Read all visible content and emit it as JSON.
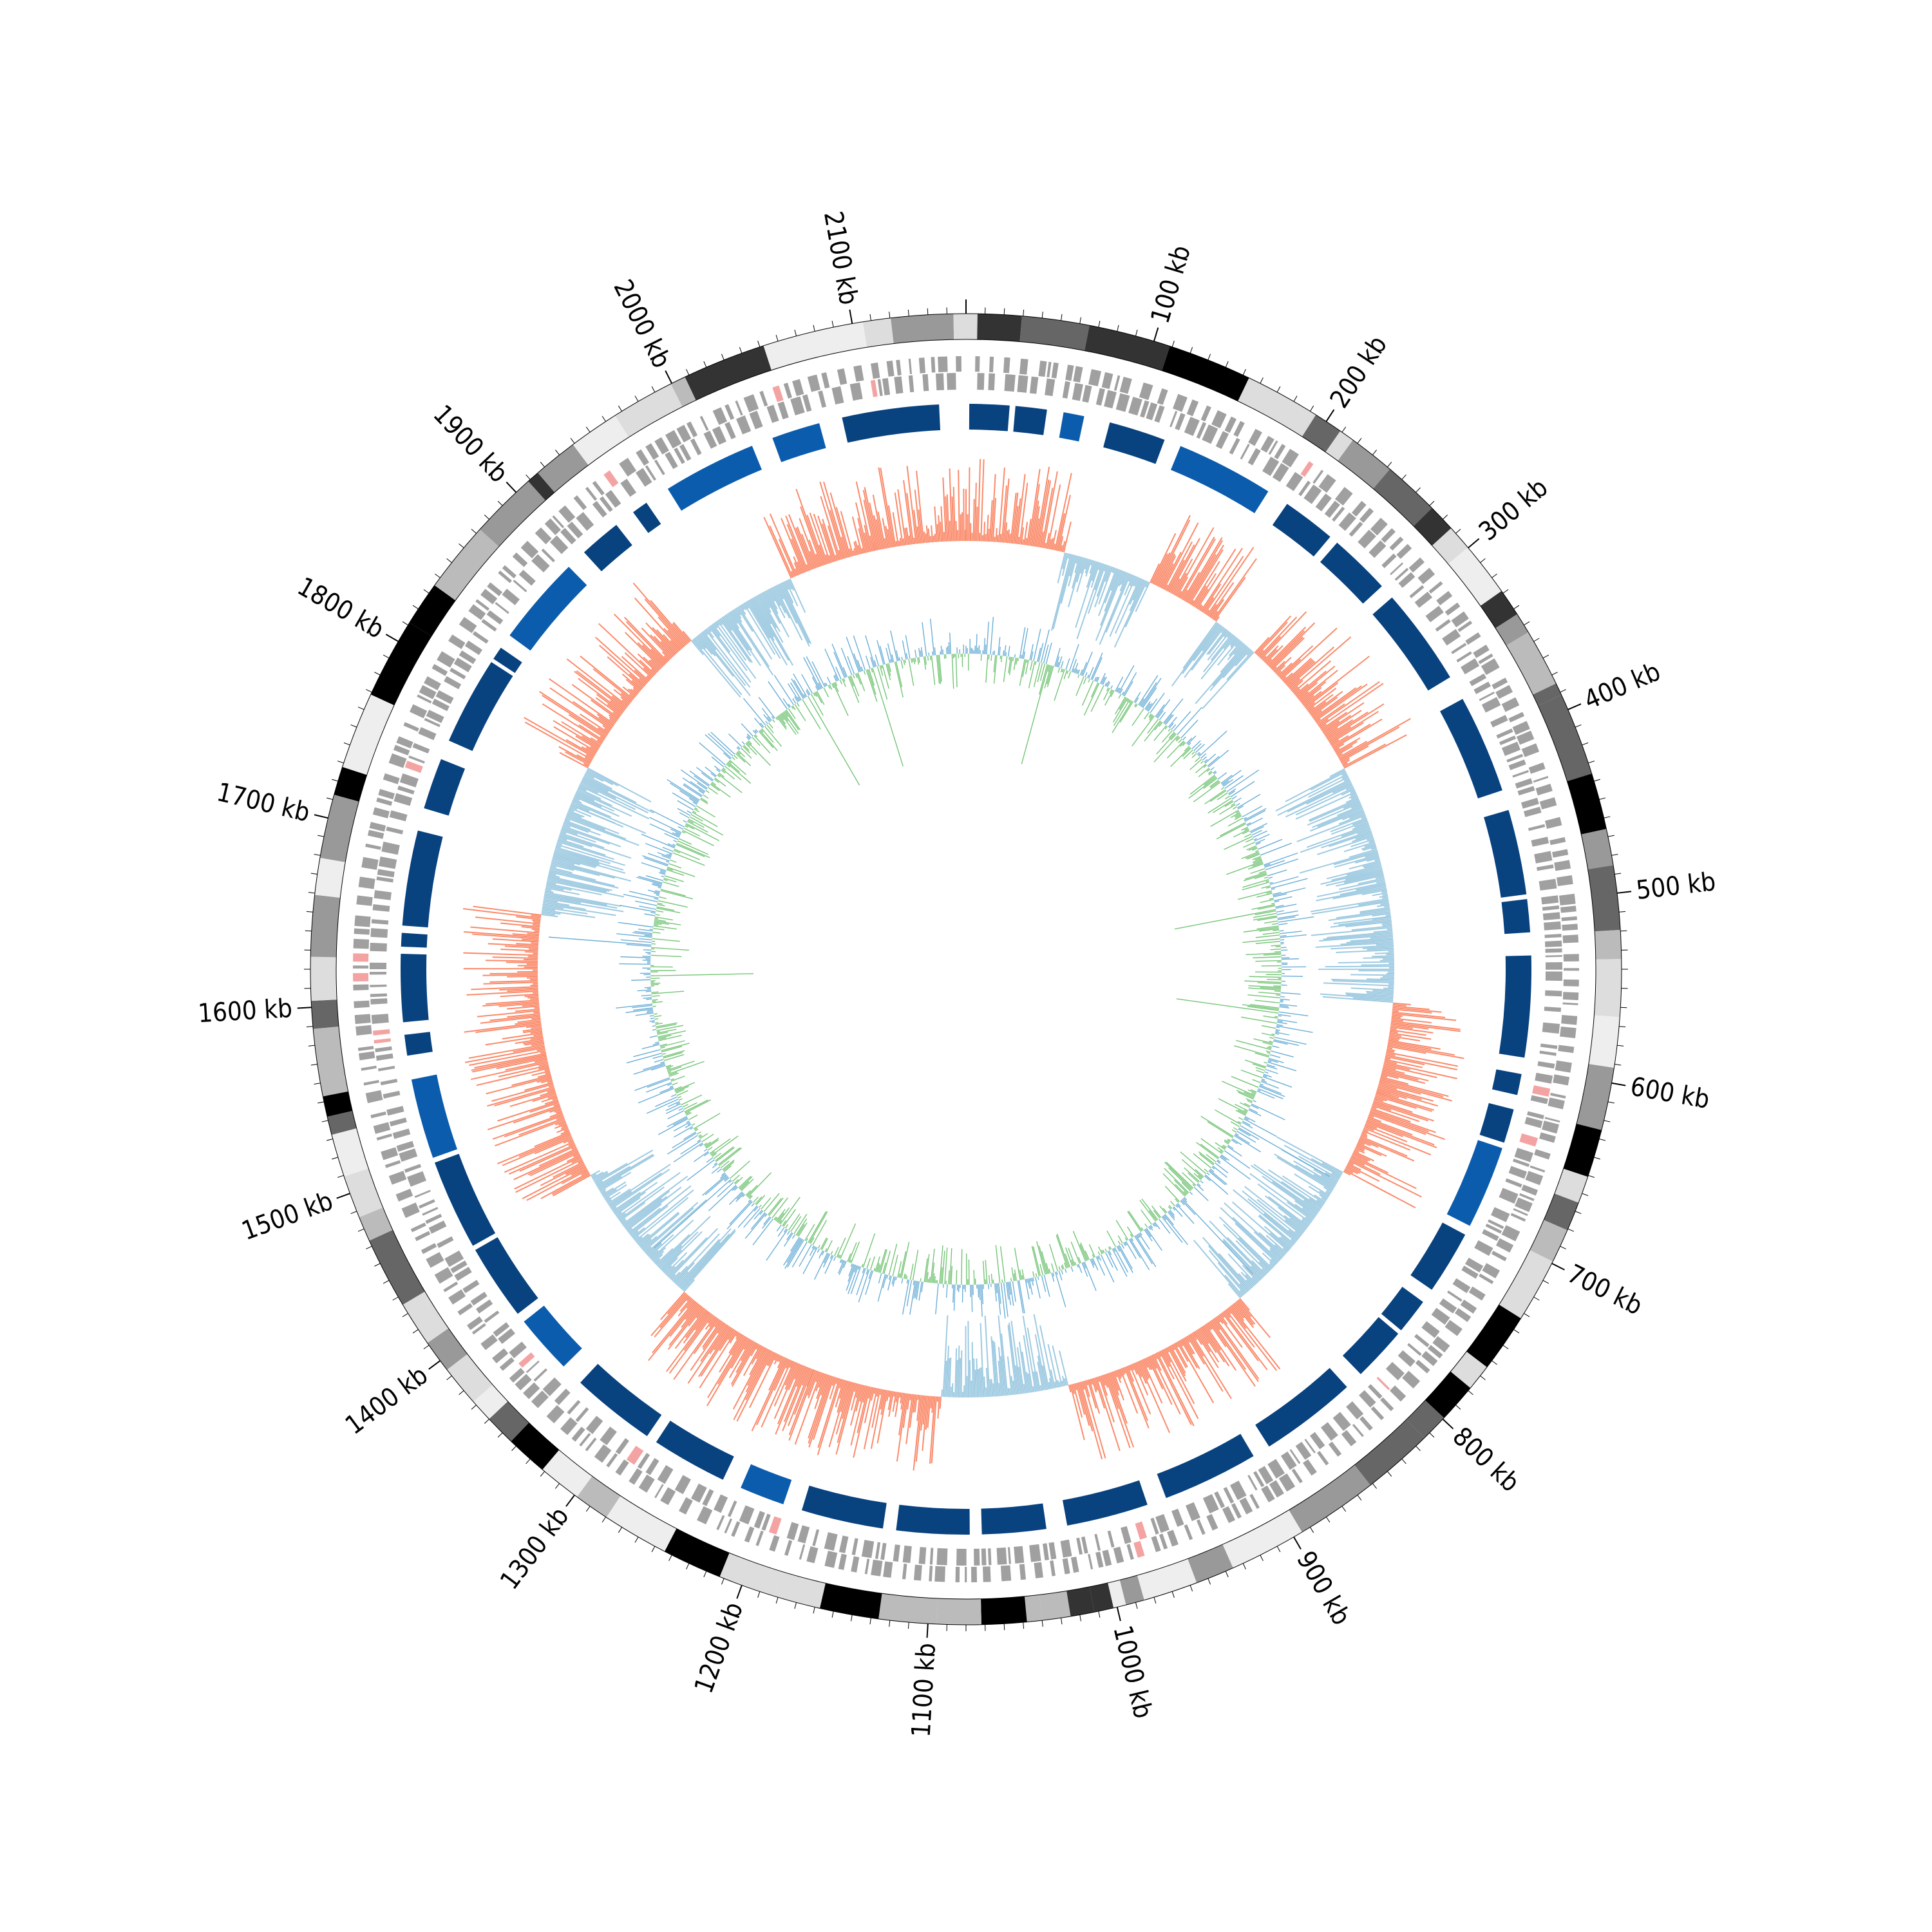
{
  "genome": {
    "length_kb": 2160,
    "position_labels": [
      "100 kb",
      "200 kb",
      "300 kb",
      "400 kb",
      "500 kb",
      "600 kb",
      "700 kb",
      "800 kb",
      "900 kb",
      "1000 kb",
      "1100 kb",
      "1200 kb",
      "1300 kb",
      "1400 kb",
      "1500 kb",
      "1600 kb",
      "1700 kb",
      "1800 kb",
      "1900 kb",
      "2000 kb",
      "2100 kb"
    ],
    "minor_tick_step_kb": 10
  },
  "tracks": [
    {
      "name": "karyotype-band",
      "description_colors": [
        "#000000",
        "#333333",
        "#666666",
        "#999999",
        "#bbbbbb",
        "#dddddd",
        "#eeeeee"
      ]
    },
    {
      "name": "genes-grey",
      "color": "#a0a0a0",
      "accent": "#f4a3a3"
    },
    {
      "name": "genes-blue",
      "color": "#08427f",
      "accent": "#0b5cad"
    },
    {
      "name": "skew-bar",
      "positive_color": "#fa8a6a",
      "negative_color": "#9ecae1"
    },
    {
      "name": "gc-content",
      "positive_color": "#74c476",
      "negative_color": "#6baed6"
    }
  ]
}
